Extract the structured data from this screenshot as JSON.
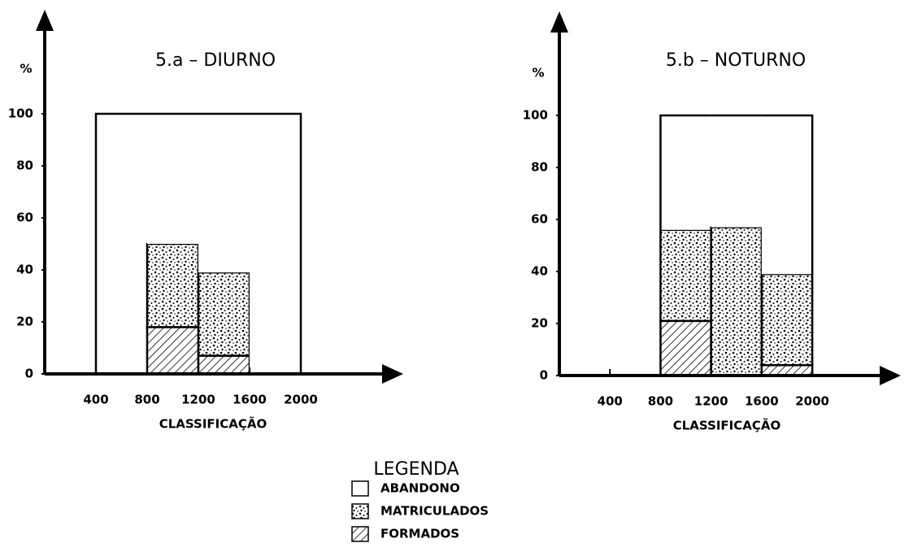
{
  "chart_data": [
    {
      "type": "stacked_histogram",
      "title": "5.a – DIURNO",
      "ylabel": "%",
      "xlabel": "CLASSIFICAÇÃO",
      "bins": [
        400,
        800,
        1200,
        1600,
        2000
      ],
      "series": [
        {
          "pattern": "hatch",
          "values": [
            0,
            18,
            7,
            0
          ]
        },
        {
          "pattern": "dots",
          "values": [
            0,
            32,
            32,
            0
          ]
        },
        {
          "pattern": "white",
          "values": [
            100,
            50,
            61,
            100
          ]
        }
      ],
      "xlim": [
        0,
        2800
      ],
      "xticks": [
        400,
        800,
        1200,
        1600,
        2000
      ],
      "ylim": [
        0,
        140
      ],
      "yticks": [
        0,
        20,
        40,
        60,
        80,
        100
      ]
    },
    {
      "type": "stacked_histogram",
      "title": "5.b – NOTURNO",
      "ylabel": "%",
      "xlabel": "CLASSIFICAÇÃO",
      "bins": [
        800,
        1200,
        1600,
        2000
      ],
      "series": [
        {
          "pattern": "hatch",
          "values": [
            21,
            0,
            4
          ]
        },
        {
          "pattern": "dots",
          "values": [
            35,
            57,
            35
          ]
        },
        {
          "pattern": "white",
          "values": [
            44,
            43,
            61
          ]
        }
      ],
      "xlim": [
        0,
        2700
      ],
      "xticks": [
        400,
        800,
        1200,
        1600,
        2000
      ],
      "ylim": [
        0,
        140
      ],
      "yticks": [
        0,
        20,
        40,
        60,
        80,
        100
      ]
    }
  ],
  "legend": {
    "title": "LEGENDA",
    "entries": [
      {
        "name": "ABANDONO",
        "pattern": "white"
      },
      {
        "name": "MATRICULADOS",
        "pattern": "dots"
      },
      {
        "name": "FORMADOS",
        "pattern": "hatch"
      }
    ]
  }
}
